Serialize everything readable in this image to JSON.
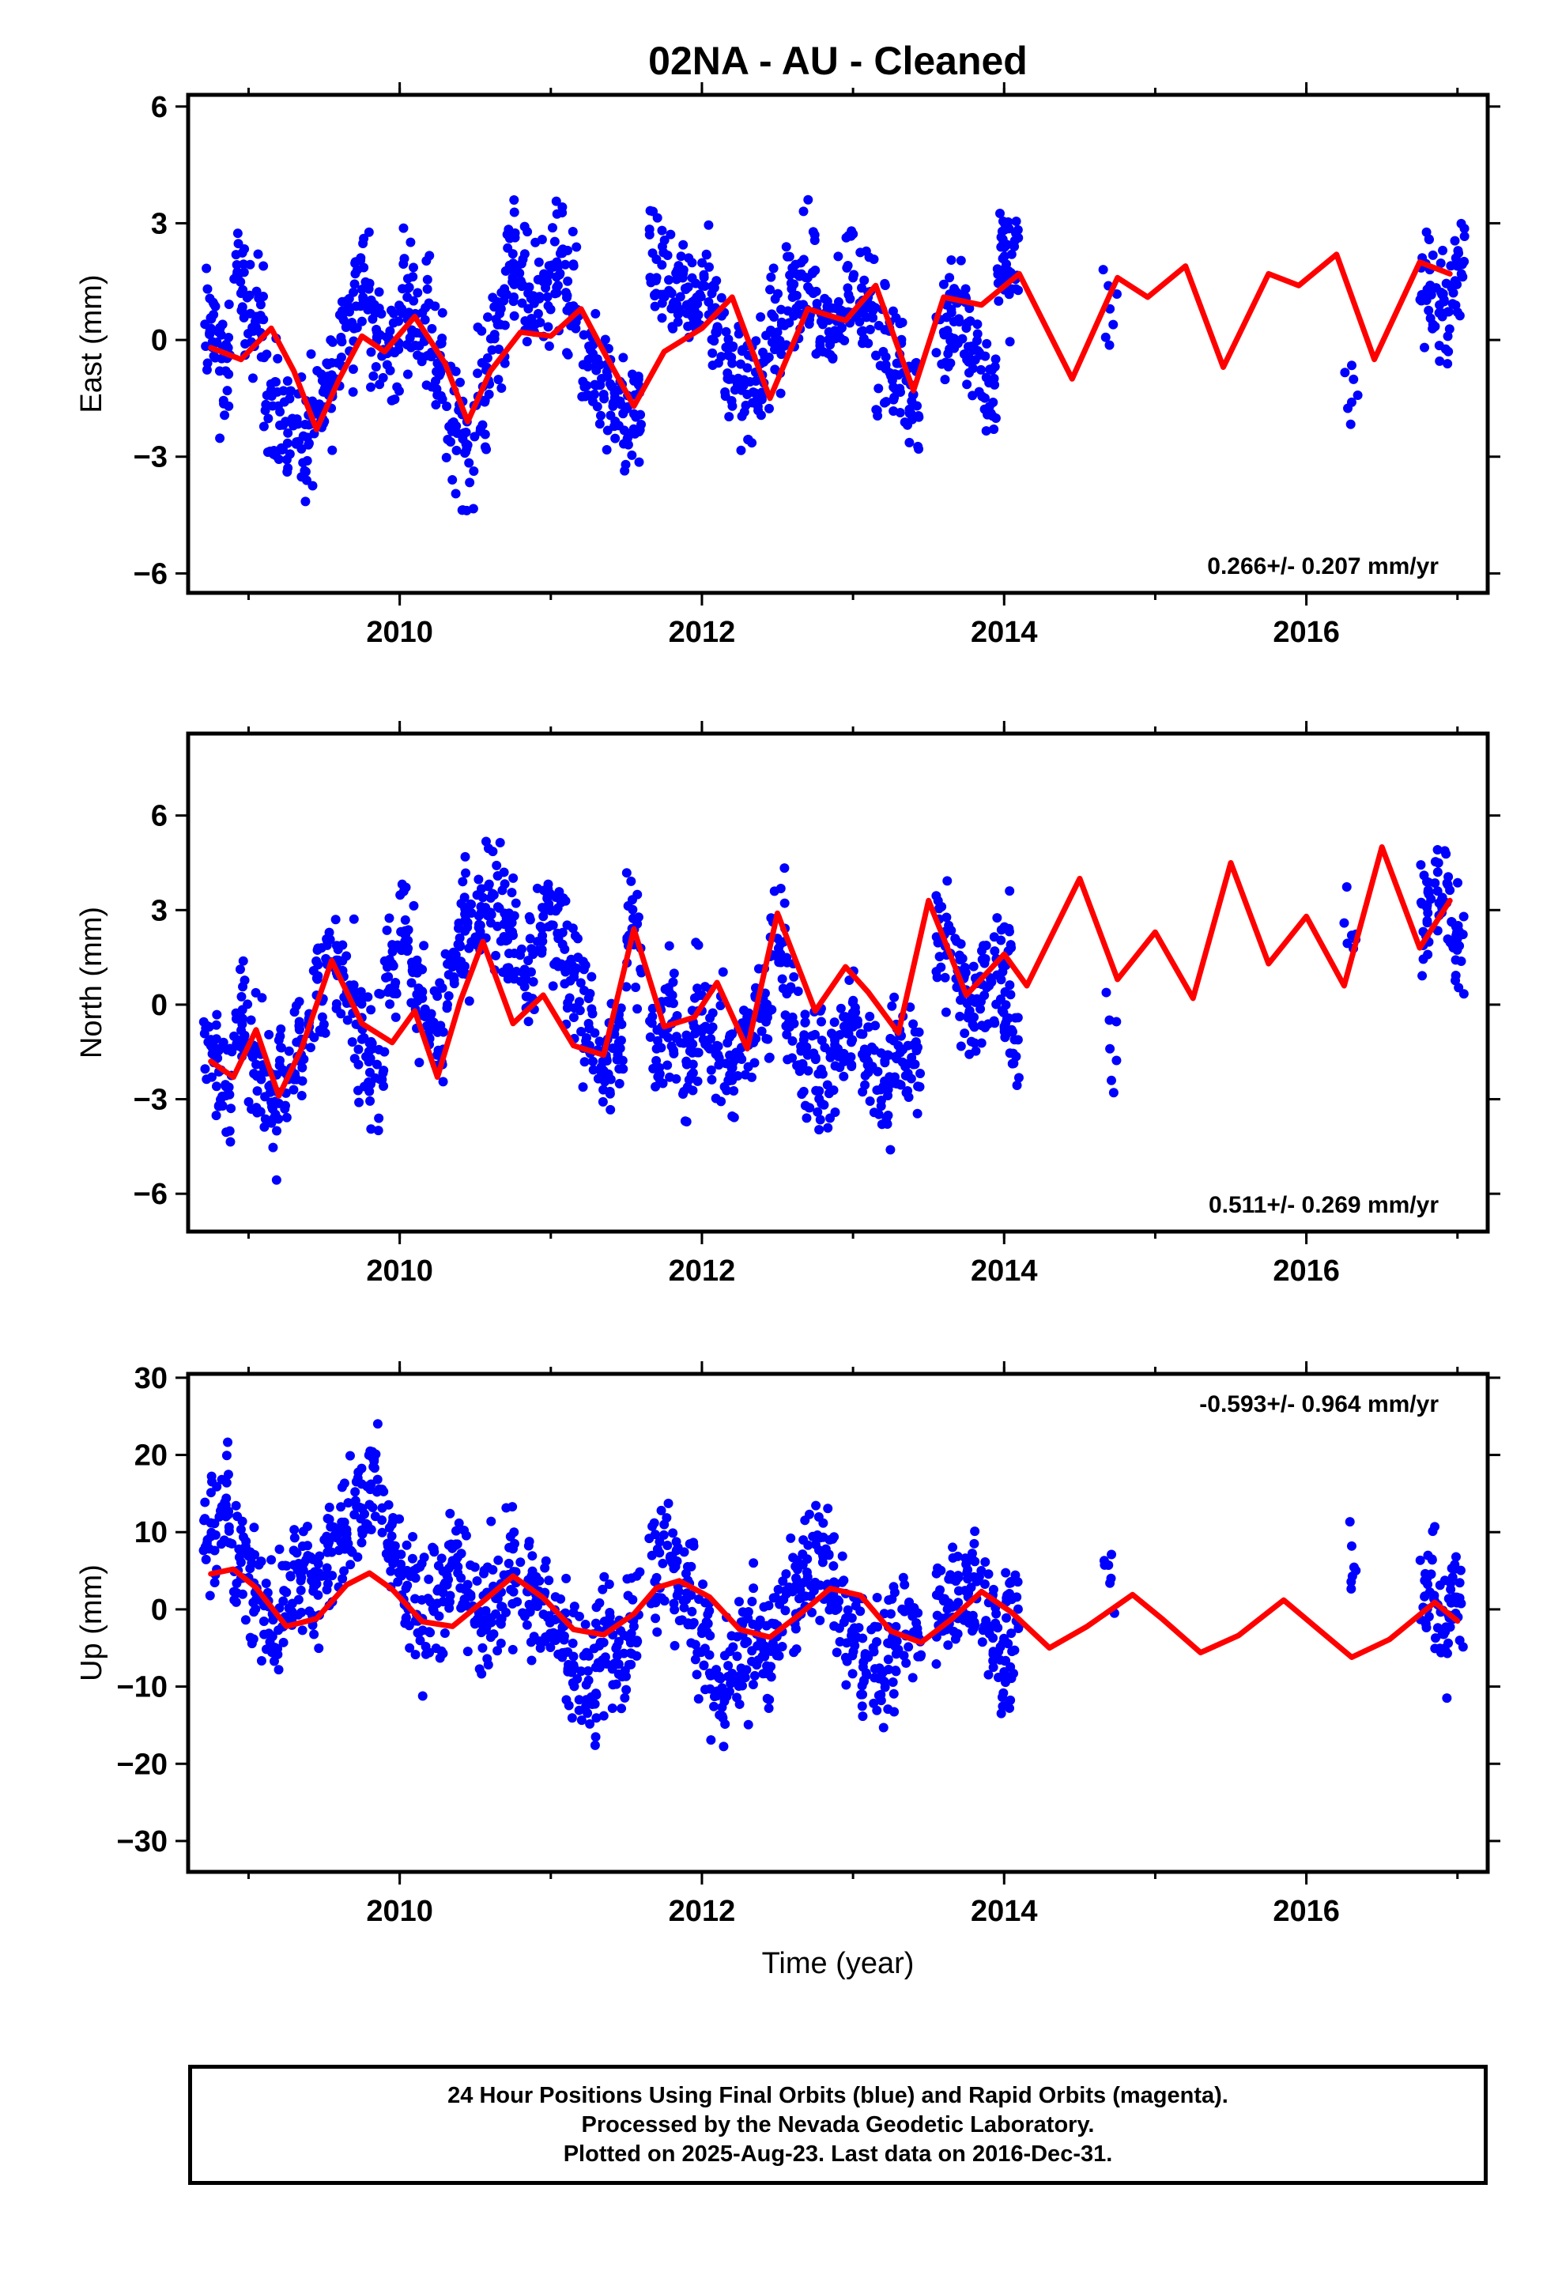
{
  "title": "02NA  - AU - Cleaned",
  "colors": {
    "data": "#0000ff",
    "model": "#ff0000",
    "axis": "#000000"
  },
  "footer": {
    "line1": "24 Hour Positions Using Final Orbits (blue) and Rapid Orbits (magenta).",
    "line2": "Processed by the Nevada Geodetic Laboratory.",
    "line3": "Plotted on 2025-Aug-23. Last data on 2016-Dec-31."
  },
  "chart_data": [
    {
      "type": "scatter",
      "ylabel": "East (mm)",
      "xlabel": "",
      "xlim": [
        2008.6,
        2017.2
      ],
      "ylim": [
        -6.5,
        6.3
      ],
      "xticks": [
        2010,
        2012,
        2014,
        2016
      ],
      "yticks": [
        -6,
        -3,
        0,
        3,
        6
      ],
      "yticklabels": [
        "−6",
        "−3",
        "0",
        "3",
        "6"
      ],
      "velocity": "0.266+/- 0.207 mm/yr",
      "velocity_position": "bottom-right",
      "series": [
        {
          "kind": "points",
          "x": [
            2008.75,
            2008.85,
            2008.95,
            2009.05,
            2009.15,
            2009.25,
            2009.35,
            2009.45,
            2009.55,
            2009.65,
            2009.75,
            2009.85,
            2009.95,
            2010.05,
            2010.15,
            2010.25,
            2010.35,
            2010.45,
            2010.55,
            2010.65,
            2010.75,
            2010.85,
            2010.95,
            2011.05,
            2011.15,
            2011.25,
            2011.35,
            2011.45,
            2011.55,
            2011.7,
            2011.8,
            2011.9,
            2012.0,
            2012.1,
            2012.2,
            2012.3,
            2012.4,
            2012.5,
            2012.6,
            2012.7,
            2012.8,
            2012.9,
            2013.0,
            2013.1,
            2013.2,
            2013.3,
            2013.4,
            2013.6,
            2013.7,
            2013.8,
            2013.9,
            2014.0,
            2014.05,
            2014.7,
            2016.3,
            2016.8,
            2016.9,
            2017.0
          ],
          "y": [
            0.3,
            -0.8,
            1.2,
            0.6,
            -1.4,
            -2.1,
            -2.8,
            -1.9,
            -0.9,
            0.4,
            1.3,
            0.2,
            -0.3,
            1.1,
            0.7,
            -0.6,
            -2.2,
            -2.7,
            -1.2,
            0.4,
            1.8,
            1.2,
            1.5,
            1.9,
            0.8,
            -0.5,
            -1.4,
            -2.2,
            -1.9,
            1.6,
            1.2,
            0.9,
            1.4,
            0.3,
            -0.6,
            -1.4,
            -0.9,
            0.2,
            1.1,
            1.6,
            0.4,
            0.2,
            1.6,
            1.1,
            -0.3,
            -0.9,
            -1.4,
            0.2,
            1.1,
            -0.2,
            -1.1,
            1.6,
            2.2,
            0.8,
            -1.6,
            1.3,
            0.6,
            1.9
          ]
        },
        {
          "kind": "model",
          "x": [
            2008.75,
            2008.95,
            2009.15,
            2009.3,
            2009.45,
            2009.6,
            2009.75,
            2009.9,
            2010.1,
            2010.3,
            2010.45,
            2010.6,
            2010.8,
            2011.0,
            2011.2,
            2011.35,
            2011.55,
            2011.75,
            2012.0,
            2012.2,
            2012.45,
            2012.7,
            2012.95,
            2013.15,
            2013.4,
            2013.6,
            2013.85,
            2014.1,
            2014.45,
            2014.75,
            2014.95,
            2015.2,
            2015.45,
            2015.75,
            2015.95,
            2016.2,
            2016.45,
            2016.75,
            2016.95
          ],
          "y": [
            -0.2,
            -0.5,
            0.3,
            -0.8,
            -2.3,
            -1.0,
            0.1,
            -0.3,
            0.6,
            -0.6,
            -2.1,
            -0.8,
            0.2,
            0.1,
            0.8,
            -0.3,
            -1.7,
            -0.3,
            0.3,
            1.1,
            -1.5,
            0.8,
            0.5,
            1.4,
            -1.3,
            1.1,
            0.9,
            1.7,
            -1.0,
            1.6,
            1.1,
            1.9,
            -0.7,
            1.7,
            1.4,
            2.2,
            -0.5,
            2.0,
            1.7
          ]
        }
      ]
    },
    {
      "type": "scatter",
      "ylabel": "North (mm)",
      "xlabel": "",
      "xlim": [
        2008.6,
        2017.2
      ],
      "ylim": [
        -7.2,
        8.6
      ],
      "xticks": [
        2010,
        2012,
        2014,
        2016
      ],
      "yticks": [
        -6,
        -3,
        0,
        3,
        6
      ],
      "yticklabels": [
        "−6",
        "−3",
        "0",
        "3",
        "6"
      ],
      "velocity": "0.511+/- 0.269 mm/yr",
      "velocity_position": "bottom-right",
      "series": [
        {
          "kind": "points",
          "x": [
            2008.75,
            2008.85,
            2008.95,
            2009.05,
            2009.15,
            2009.25,
            2009.35,
            2009.45,
            2009.55,
            2009.65,
            2009.75,
            2009.85,
            2009.95,
            2010.05,
            2010.15,
            2010.25,
            2010.35,
            2010.45,
            2010.55,
            2010.65,
            2010.75,
            2010.85,
            2010.95,
            2011.05,
            2011.15,
            2011.25,
            2011.35,
            2011.45,
            2011.55,
            2011.7,
            2011.8,
            2011.9,
            2012.0,
            2012.1,
            2012.2,
            2012.3,
            2012.4,
            2012.5,
            2012.6,
            2012.7,
            2012.8,
            2012.9,
            2013.0,
            2013.1,
            2013.2,
            2013.3,
            2013.4,
            2013.6,
            2013.7,
            2013.8,
            2013.9,
            2014.0,
            2014.05,
            2014.7,
            2016.3,
            2016.8,
            2016.9,
            2017.0
          ],
          "y": [
            -1.3,
            -2.6,
            -0.4,
            -1.9,
            -3.1,
            -2.2,
            -1.1,
            0.3,
            1.2,
            0.4,
            -1.1,
            -1.9,
            1.3,
            1.7,
            0.2,
            -0.8,
            1.2,
            2.6,
            3.4,
            3.1,
            2.2,
            1.4,
            2.8,
            2.1,
            1.1,
            -0.6,
            -2.1,
            -1.2,
            1.9,
            -1.4,
            -0.6,
            -1.9,
            -0.2,
            -1.3,
            -2.4,
            -1.1,
            -0.3,
            2.1,
            -0.4,
            -1.6,
            -2.2,
            -1.4,
            -0.7,
            -1.8,
            -2.6,
            -1.3,
            -1.9,
            2.2,
            0.9,
            -0.4,
            0.6,
            1.3,
            -0.8,
            -1.4,
            2.2,
            2.6,
            3.4,
            2.1
          ]
        },
        {
          "kind": "model",
          "x": [
            2008.75,
            2008.9,
            2009.05,
            2009.2,
            2009.35,
            2009.55,
            2009.75,
            2009.95,
            2010.1,
            2010.25,
            2010.4,
            2010.55,
            2010.75,
            2010.95,
            2011.15,
            2011.35,
            2011.55,
            2011.75,
            2011.95,
            2012.1,
            2012.3,
            2012.5,
            2012.75,
            2012.95,
            2013.1,
            2013.3,
            2013.5,
            2013.75,
            2014.0,
            2014.15,
            2014.5,
            2014.75,
            2015.0,
            2015.25,
            2015.5,
            2015.75,
            2016.0,
            2016.25,
            2016.5,
            2016.75,
            2016.95
          ],
          "y": [
            -1.8,
            -2.3,
            -0.8,
            -2.9,
            -1.4,
            1.4,
            -0.6,
            -1.2,
            -0.2,
            -2.3,
            0.1,
            2.0,
            -0.6,
            0.3,
            -1.3,
            -1.6,
            2.4,
            -0.7,
            -0.4,
            0.7,
            -1.4,
            2.9,
            -0.2,
            1.2,
            0.4,
            -0.9,
            3.3,
            0.3,
            1.6,
            0.6,
            4.0,
            0.8,
            2.3,
            0.2,
            4.5,
            1.3,
            2.8,
            0.6,
            5.0,
            1.8,
            3.3
          ]
        }
      ]
    },
    {
      "type": "scatter",
      "ylabel": "Up (mm)",
      "xlabel": "Time (year)",
      "xlim": [
        2008.6,
        2017.2
      ],
      "ylim": [
        -34,
        30.5
      ],
      "xticks": [
        2010,
        2012,
        2014,
        2016
      ],
      "yticks": [
        -30,
        -20,
        -10,
        0,
        10,
        20,
        30
      ],
      "yticklabels": [
        "−30",
        "−20",
        "−10",
        "0",
        "10",
        "20",
        "30"
      ],
      "velocity": "-0.593+/- 0.964 mm/yr",
      "velocity_position": "top-right",
      "series": [
        {
          "kind": "points",
          "x": [
            2008.75,
            2008.85,
            2008.95,
            2009.05,
            2009.15,
            2009.25,
            2009.35,
            2009.45,
            2009.55,
            2009.65,
            2009.75,
            2009.85,
            2009.95,
            2010.05,
            2010.15,
            2010.25,
            2010.35,
            2010.45,
            2010.55,
            2010.65,
            2010.75,
            2010.85,
            2010.95,
            2011.05,
            2011.15,
            2011.25,
            2011.35,
            2011.45,
            2011.55,
            2011.7,
            2011.8,
            2011.9,
            2012.0,
            2012.1,
            2012.2,
            2012.3,
            2012.4,
            2012.5,
            2012.6,
            2012.7,
            2012.8,
            2012.9,
            2013.0,
            2013.1,
            2013.2,
            2013.3,
            2013.4,
            2013.6,
            2013.7,
            2013.8,
            2013.9,
            2014.0,
            2014.05,
            2014.7,
            2016.3,
            2016.8,
            2016.9,
            2017.0
          ],
          "y": [
            11.2,
            13.5,
            6.1,
            1.3,
            -3.4,
            2.2,
            4.1,
            3.3,
            7.4,
            9.8,
            13.1,
            15.2,
            8.3,
            3.1,
            -1.2,
            2.4,
            6.3,
            3.2,
            -2.1,
            1.4,
            4.2,
            2.3,
            1.1,
            -3.2,
            -6.1,
            -9.2,
            -4.3,
            -7.1,
            -2.2,
            4.1,
            6.2,
            2.1,
            -3.1,
            -11.2,
            -8.3,
            -4.2,
            -6.1,
            -2.1,
            2.3,
            4.2,
            6.1,
            1.2,
            -3.3,
            -6.2,
            -8.1,
            -5.2,
            -3.1,
            1.1,
            2.4,
            4.2,
            -2.2,
            -8.1,
            1.3,
            3.4,
            8.2,
            4.1,
            -3.2,
            1.1
          ]
        },
        {
          "kind": "model",
          "x": [
            2008.75,
            2008.9,
            2009.05,
            2009.25,
            2009.45,
            2009.65,
            2009.8,
            2009.95,
            2010.15,
            2010.35,
            2010.55,
            2010.75,
            2010.95,
            2011.15,
            2011.35,
            2011.55,
            2011.7,
            2011.85,
            2012.05,
            2012.25,
            2012.45,
            2012.65,
            2012.85,
            2013.05,
            2013.25,
            2013.45,
            2013.65,
            2013.85,
            2014.05,
            2014.3,
            2014.55,
            2014.85,
            2015.05,
            2015.3,
            2015.55,
            2015.85,
            2016.05,
            2016.3,
            2016.55,
            2016.85,
            2017.0
          ],
          "y": [
            4.6,
            5.2,
            2.8,
            -2.2,
            -1.2,
            3.2,
            4.7,
            2.6,
            -1.6,
            -2.2,
            1.0,
            4.3,
            1.5,
            -2.6,
            -3.3,
            -0.6,
            2.8,
            3.7,
            1.6,
            -2.6,
            -3.6,
            -0.6,
            2.7,
            1.8,
            -2.8,
            -4.3,
            -1.3,
            2.3,
            -0.4,
            -5.0,
            -2.2,
            1.9,
            -1.3,
            -5.6,
            -3.4,
            1.2,
            -2.1,
            -6.2,
            -3.9,
            0.9,
            -1.5
          ]
        }
      ]
    }
  ]
}
